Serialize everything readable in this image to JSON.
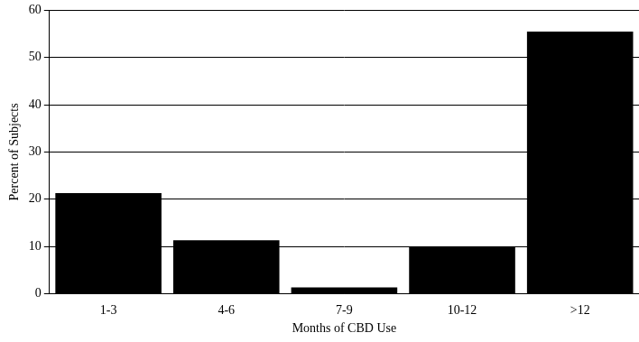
{
  "chart_data": {
    "type": "bar",
    "x_label": "Months of CBD Use",
    "y_label": "Percent of Subjects",
    "categories": [
      "1-3",
      "4-6",
      "7-9",
      "10-12",
      ">12"
    ],
    "values": [
      21.3,
      11.3,
      1.3,
      10,
      55.5
    ],
    "color": "#000000",
    "ylim": [
      0,
      60
    ],
    "yticks": [
      0,
      10,
      20,
      30,
      40,
      50,
      60
    ],
    "grid": true
  }
}
